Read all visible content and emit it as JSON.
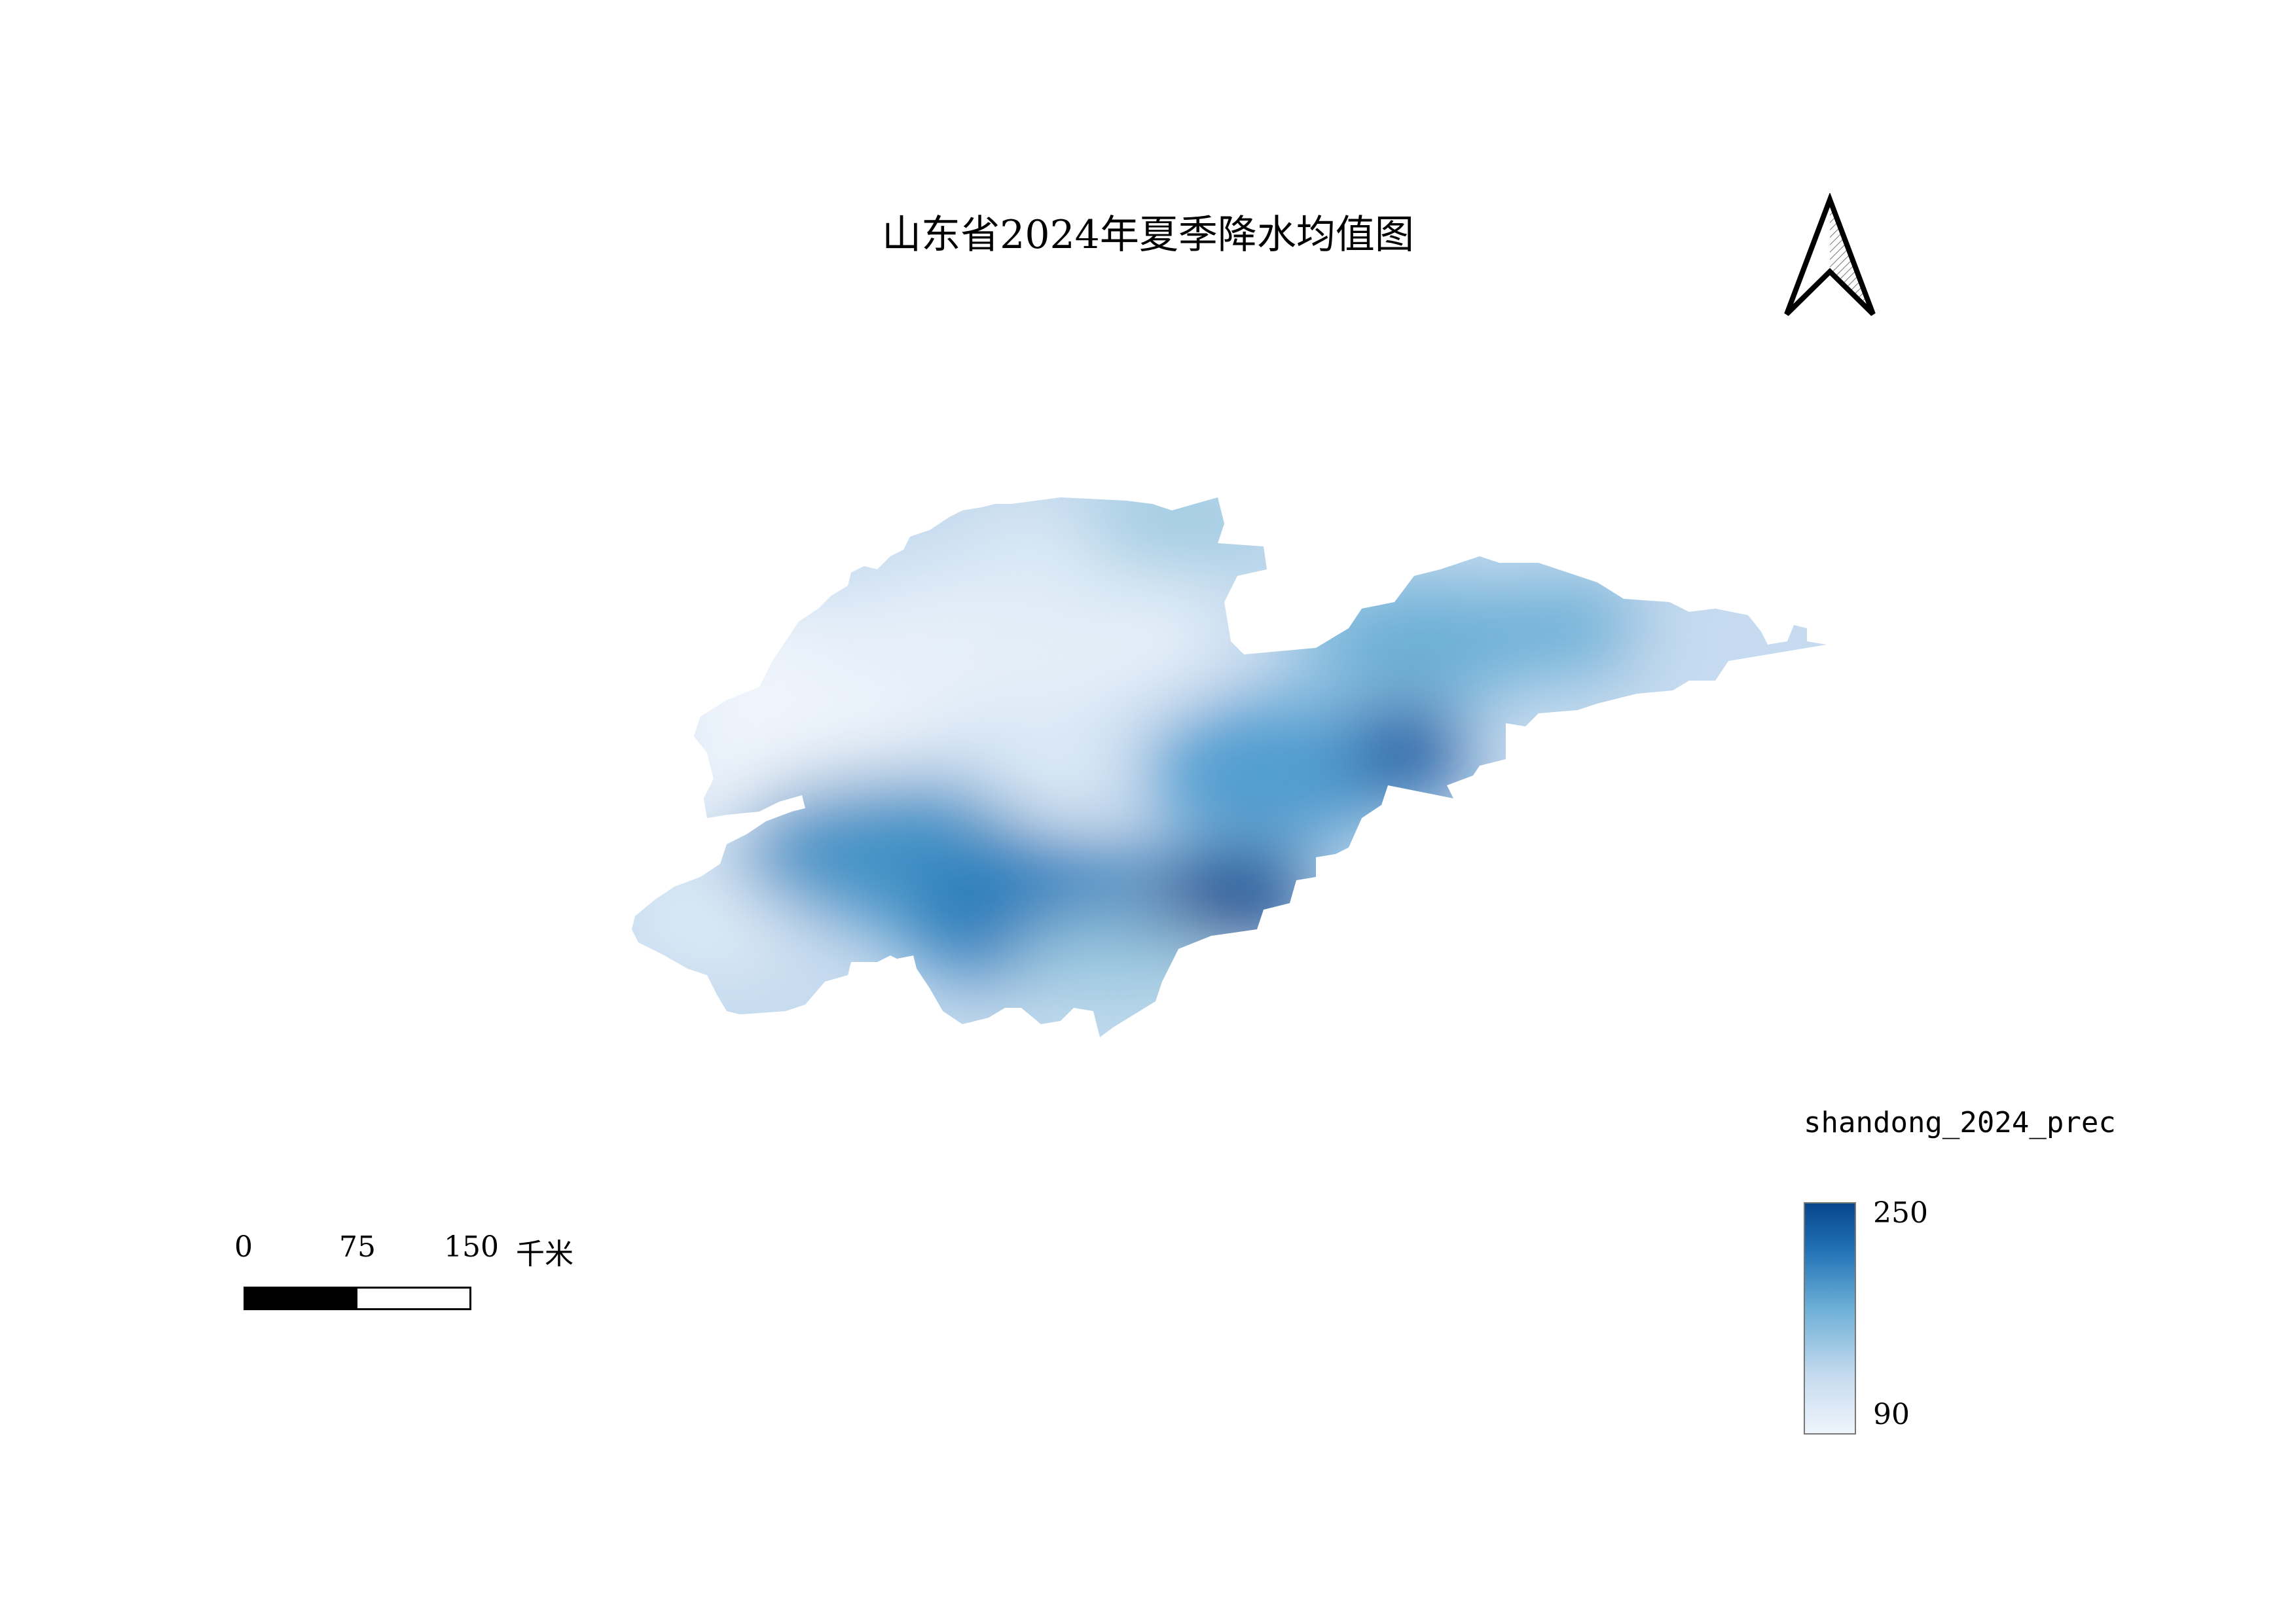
{
  "map": {
    "title": "山东省2024年夏季降水均值图"
  },
  "north_arrow": {
    "icon": "north-arrow-icon"
  },
  "scale_bar": {
    "ticks": [
      "0",
      "75",
      "150"
    ],
    "unit": "千米"
  },
  "legend": {
    "title": "shandong_2024_prec",
    "max_label": "250",
    "min_label": "90",
    "ramp_colors": [
      "#eef4fb",
      "#c6dbef",
      "#6baed6",
      "#2171b5",
      "#08468c"
    ]
  }
}
